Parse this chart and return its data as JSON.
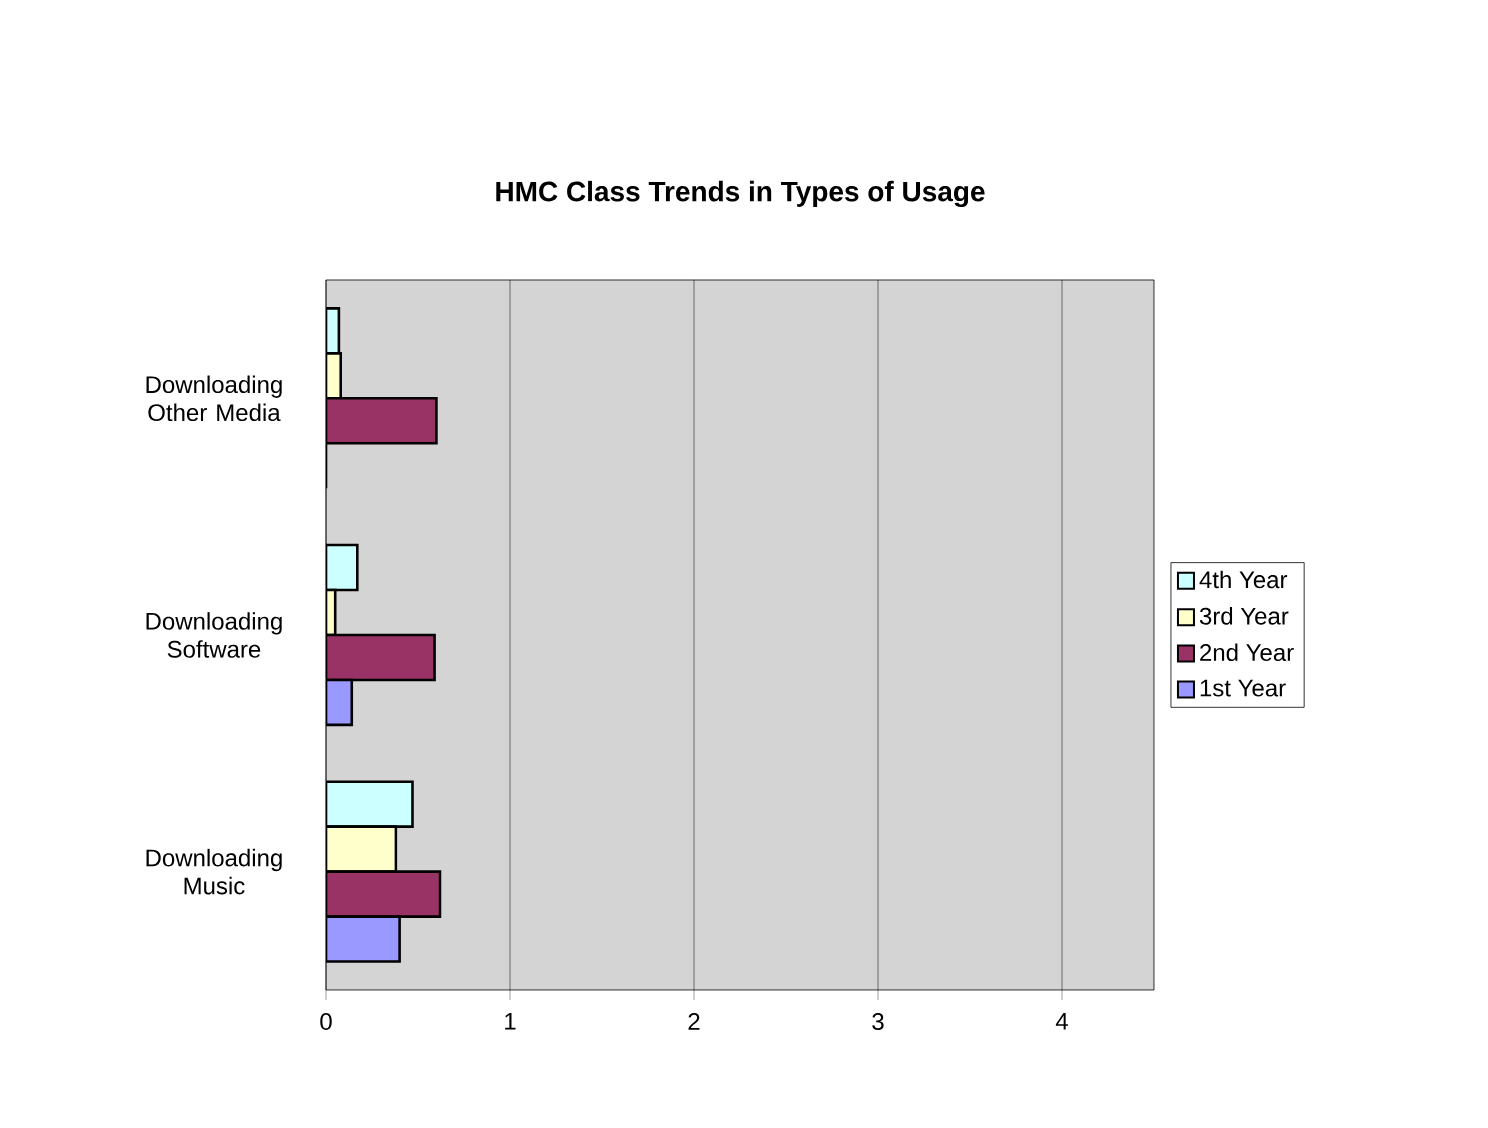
{
  "chart_data": {
    "type": "bar",
    "orientation": "horizontal",
    "title": "HMC Class Trends in Types of Usage",
    "categories": [
      "Downloading Other Media",
      "Downloading Software",
      "Downloading Music"
    ],
    "series": [
      {
        "name": "4th Year",
        "color": "#ccffff",
        "values": [
          0.07,
          0.17,
          0.47
        ]
      },
      {
        "name": "3rd Year",
        "color": "#ffffcc",
        "values": [
          0.08,
          0.05,
          0.38
        ]
      },
      {
        "name": "2nd Year",
        "color": "#993366",
        "values": [
          0.6,
          0.59,
          0.62
        ]
      },
      {
        "name": "1st Year",
        "color": "#9999ff",
        "values": [
          0,
          0.14,
          0.4
        ]
      }
    ],
    "xlim": [
      0,
      4.5
    ],
    "xticks": [
      0,
      1,
      2,
      3,
      4
    ],
    "grid": "x",
    "legend": "right"
  }
}
